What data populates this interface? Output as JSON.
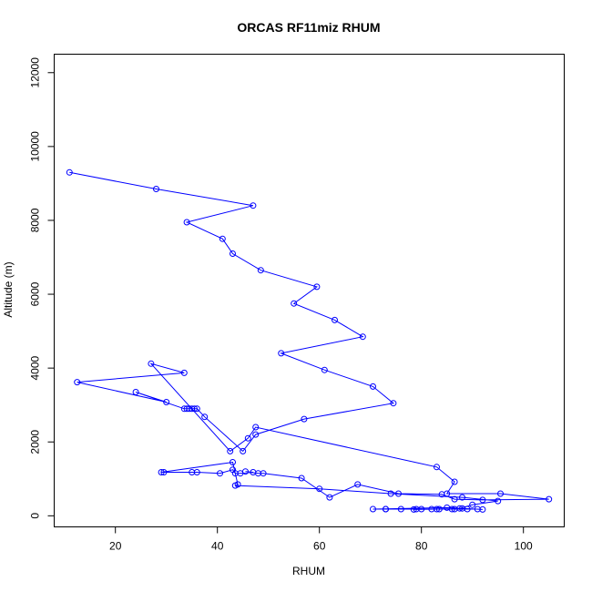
{
  "chart_data": {
    "type": "line",
    "title": "ORCAS RF11miz RHUM",
    "xlabel": "RHUM",
    "ylabel": "Altitude (m)",
    "xlim": [
      8,
      108
    ],
    "ylim": [
      -300,
      12500
    ],
    "xticks": [
      20,
      40,
      60,
      80,
      100
    ],
    "yticks": [
      0,
      2000,
      4000,
      6000,
      8000,
      10000,
      12000
    ],
    "grid": false,
    "legend": "none",
    "color": "#0000ff",
    "markers": "open-circle",
    "x": [
      11,
      28,
      47,
      34,
      41,
      43,
      48.5,
      59.5,
      55,
      63,
      68.5,
      52.5,
      61,
      70.5,
      74.5,
      57,
      47.5,
      45,
      37.5,
      36,
      35.5,
      35,
      34.5,
      34,
      33.5,
      24,
      30,
      12.5,
      33.5,
      27,
      42.5,
      46,
      47.5,
      83,
      86.5,
      85,
      95.5,
      105,
      92,
      86.5,
      84,
      75.5,
      67.5,
      62,
      56.5,
      49,
      48,
      45.5,
      47,
      44.5,
      43.5,
      43,
      40.5,
      36,
      35,
      29.5,
      29,
      43,
      44,
      43.5,
      60,
      74,
      88,
      95,
      90,
      87.5,
      82,
      78.5,
      83,
      86,
      91,
      92,
      88,
      85,
      70.5,
      73,
      76,
      80,
      83.5,
      89,
      86.5,
      79,
      73
    ],
    "y": [
      9300,
      8850,
      8400,
      7950,
      7500,
      7100,
      6650,
      6200,
      5750,
      5300,
      4850,
      4400,
      3950,
      3500,
      3050,
      2620,
      2200,
      1750,
      2680,
      2900,
      2900,
      2900,
      2900,
      2900,
      2900,
      3350,
      3080,
      3620,
      3870,
      4120,
      1750,
      2100,
      2400,
      1320,
      920,
      600,
      600,
      450,
      430,
      450,
      580,
      600,
      850,
      500,
      1020,
      1150,
      1150,
      1200,
      1180,
      1150,
      1150,
      1250,
      1150,
      1180,
      1180,
      1180,
      1180,
      1450,
      850,
      820,
      730,
      600,
      500,
      400,
      300,
      200,
      180,
      170,
      180,
      180,
      180,
      170,
      200,
      220,
      180,
      180,
      180,
      180,
      180,
      180,
      180,
      180,
      180
    ]
  }
}
